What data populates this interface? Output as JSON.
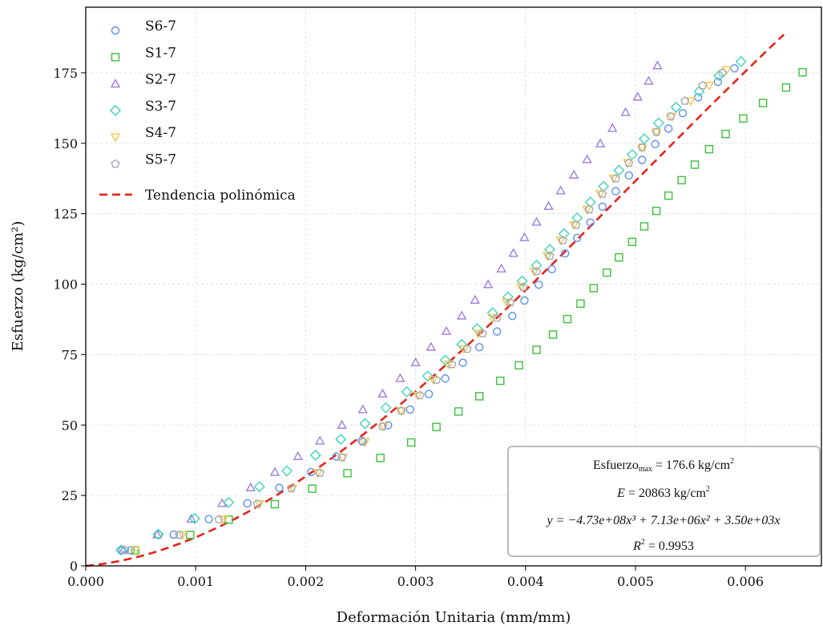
{
  "chart_data": {
    "type": "scatter",
    "xlabel": "Deformación Unitaria (mm/mm)",
    "ylabel": "Esfuerzo (kg/cm²)",
    "xlim": [
      0,
      0.0066
    ],
    "ylim": [
      0,
      190
    ],
    "x_ticks": [
      0.0,
      0.001,
      0.002,
      0.003,
      0.004,
      0.005,
      0.006
    ],
    "x_tick_labels": [
      "0.000",
      "0.001",
      "0.002",
      "0.003",
      "0.004",
      "0.005",
      "0.006"
    ],
    "y_ticks": [
      0,
      25,
      50,
      75,
      100,
      125,
      150,
      175
    ],
    "y_tick_labels": [
      "0",
      "25",
      "50",
      "75",
      "100",
      "125",
      "150",
      "175"
    ],
    "grid": true,
    "legend_position": "top-left",
    "series": [
      {
        "name": "S6-7",
        "marker": "circle",
        "color": "#5b8ff0",
        "points": [
          [
            0.00033,
            5.5
          ],
          [
            0.00041,
            5.5
          ],
          [
            0.00066,
            11.1
          ],
          [
            0.0008,
            11.1
          ],
          [
            0.00112,
            16.6
          ],
          [
            0.00147,
            22.2
          ],
          [
            0.00176,
            27.7
          ],
          [
            0.00205,
            33.3
          ],
          [
            0.00228,
            38.8
          ],
          [
            0.00251,
            44.4
          ],
          [
            0.00275,
            49.9
          ],
          [
            0.00295,
            55.5
          ],
          [
            0.00312,
            61.0
          ],
          [
            0.00327,
            66.5
          ],
          [
            0.00343,
            72.1
          ],
          [
            0.00358,
            77.6
          ],
          [
            0.00374,
            83.2
          ],
          [
            0.00388,
            88.7
          ],
          [
            0.00399,
            94.2
          ],
          [
            0.00412,
            99.8
          ],
          [
            0.00424,
            105.3
          ],
          [
            0.00436,
            110.9
          ],
          [
            0.00447,
            116.4
          ],
          [
            0.00459,
            121.9
          ],
          [
            0.0047,
            127.5
          ],
          [
            0.00482,
            133.0
          ],
          [
            0.00494,
            138.6
          ],
          [
            0.00506,
            144.1
          ],
          [
            0.00518,
            149.7
          ],
          [
            0.0053,
            155.2
          ],
          [
            0.00543,
            160.7
          ],
          [
            0.00557,
            166.3
          ],
          [
            0.00575,
            171.8
          ],
          [
            0.0059,
            176.6
          ]
        ]
      },
      {
        "name": "S1-7",
        "marker": "square",
        "color": "#3cc03c",
        "points": [
          [
            0.00045,
            5.5
          ],
          [
            0.00095,
            11.0
          ],
          [
            0.0013,
            16.4
          ],
          [
            0.00172,
            21.9
          ],
          [
            0.00206,
            27.4
          ],
          [
            0.00238,
            32.9
          ],
          [
            0.00268,
            38.3
          ],
          [
            0.00296,
            43.8
          ],
          [
            0.00319,
            49.3
          ],
          [
            0.00339,
            54.8
          ],
          [
            0.00358,
            60.2
          ],
          [
            0.00377,
            65.7
          ],
          [
            0.00394,
            71.2
          ],
          [
            0.0041,
            76.7
          ],
          [
            0.00425,
            82.1
          ],
          [
            0.00438,
            87.6
          ],
          [
            0.0045,
            93.1
          ],
          [
            0.00462,
            98.6
          ],
          [
            0.00474,
            104.1
          ],
          [
            0.00485,
            109.5
          ],
          [
            0.00497,
            115.0
          ],
          [
            0.00508,
            120.5
          ],
          [
            0.00519,
            126.0
          ],
          [
            0.0053,
            131.4
          ],
          [
            0.00542,
            136.9
          ],
          [
            0.00554,
            142.4
          ],
          [
            0.00567,
            147.9
          ],
          [
            0.00582,
            153.3
          ],
          [
            0.00598,
            158.8
          ],
          [
            0.00616,
            164.3
          ],
          [
            0.00637,
            169.8
          ],
          [
            0.00652,
            175.2
          ]
        ]
      },
      {
        "name": "S2-7",
        "marker": "triangle-up",
        "color": "#9b7fe0",
        "points": [
          [
            0.00034,
            5.6
          ],
          [
            0.00065,
            11.1
          ],
          [
            0.00096,
            16.7
          ],
          [
            0.00124,
            22.2
          ],
          [
            0.0015,
            27.8
          ],
          [
            0.00172,
            33.3
          ],
          [
            0.00193,
            38.9
          ],
          [
            0.00213,
            44.4
          ],
          [
            0.00233,
            50.0
          ],
          [
            0.00252,
            55.5
          ],
          [
            0.0027,
            61.1
          ],
          [
            0.00286,
            66.6
          ],
          [
            0.003,
            72.2
          ],
          [
            0.00314,
            77.7
          ],
          [
            0.00328,
            83.3
          ],
          [
            0.00342,
            88.8
          ],
          [
            0.00354,
            94.4
          ],
          [
            0.00366,
            99.9
          ],
          [
            0.00378,
            105.5
          ],
          [
            0.00389,
            111.0
          ],
          [
            0.00399,
            116.6
          ],
          [
            0.0041,
            122.1
          ],
          [
            0.00421,
            127.7
          ],
          [
            0.00432,
            133.2
          ],
          [
            0.00444,
            138.8
          ],
          [
            0.00456,
            144.3
          ],
          [
            0.00468,
            149.9
          ],
          [
            0.00479,
            155.4
          ],
          [
            0.00491,
            161.0
          ],
          [
            0.00502,
            166.5
          ],
          [
            0.00512,
            172.1
          ],
          [
            0.0052,
            177.6
          ]
        ]
      },
      {
        "name": "S3-7",
        "marker": "diamond",
        "color": "#3fd4b4",
        "points": [
          [
            0.00032,
            5.6
          ],
          [
            0.00066,
            11.2
          ],
          [
            0.00099,
            16.8
          ],
          [
            0.0013,
            22.5
          ],
          [
            0.00158,
            28.1
          ],
          [
            0.00183,
            33.7
          ],
          [
            0.00209,
            39.3
          ],
          [
            0.00232,
            44.9
          ],
          [
            0.00254,
            50.5
          ],
          [
            0.00273,
            56.1
          ],
          [
            0.00292,
            61.8
          ],
          [
            0.00311,
            67.4
          ],
          [
            0.00327,
            73.0
          ],
          [
            0.00342,
            78.6
          ],
          [
            0.00356,
            84.2
          ],
          [
            0.0037,
            89.8
          ],
          [
            0.00384,
            95.4
          ],
          [
            0.00397,
            101.1
          ],
          [
            0.0041,
            106.7
          ],
          [
            0.00422,
            112.3
          ],
          [
            0.00435,
            117.9
          ],
          [
            0.00447,
            123.5
          ],
          [
            0.00459,
            129.1
          ],
          [
            0.00471,
            134.7
          ],
          [
            0.00485,
            140.4
          ],
          [
            0.00497,
            146.0
          ],
          [
            0.00508,
            151.6
          ],
          [
            0.00521,
            157.2
          ],
          [
            0.00537,
            162.8
          ],
          [
            0.00558,
            168.4
          ],
          [
            0.00576,
            174.0
          ],
          [
            0.00596,
            179.0
          ]
        ]
      },
      {
        "name": "S4-7",
        "marker": "triangle-down",
        "color": "#f5c542",
        "points": [
          [
            0.00045,
            5.5
          ],
          [
            0.00088,
            11.0
          ],
          [
            0.00125,
            16.5
          ],
          [
            0.00158,
            22.0
          ],
          [
            0.00188,
            27.5
          ],
          [
            0.00211,
            33.0
          ],
          [
            0.00234,
            38.5
          ],
          [
            0.00254,
            44.0
          ],
          [
            0.00271,
            49.5
          ],
          [
            0.00287,
            55.0
          ],
          [
            0.00302,
            60.5
          ],
          [
            0.00316,
            66.0
          ],
          [
            0.0033,
            71.5
          ],
          [
            0.00344,
            77.0
          ],
          [
            0.00357,
            82.5
          ],
          [
            0.0037,
            88.0
          ],
          [
            0.00383,
            93.5
          ],
          [
            0.00396,
            99.0
          ],
          [
            0.00408,
            104.5
          ],
          [
            0.0042,
            110.0
          ],
          [
            0.00432,
            115.5
          ],
          [
            0.00444,
            121.0
          ],
          [
            0.00456,
            126.5
          ],
          [
            0.00468,
            132.0
          ],
          [
            0.0048,
            137.5
          ],
          [
            0.00493,
            143.0
          ],
          [
            0.00506,
            148.5
          ],
          [
            0.00519,
            154.0
          ],
          [
            0.00533,
            159.5
          ],
          [
            0.0055,
            165.0
          ],
          [
            0.00567,
            170.5
          ],
          [
            0.00583,
            176.0
          ]
        ]
      },
      {
        "name": "S5-7",
        "marker": "pentagon",
        "color": "#a8a8b8",
        "points": [
          [
            0.00036,
            5.5
          ],
          [
            0.00085,
            11.0
          ],
          [
            0.00121,
            16.5
          ],
          [
            0.00156,
            22.0
          ],
          [
            0.00187,
            27.5
          ],
          [
            0.00213,
            33.0
          ],
          [
            0.00233,
            38.5
          ],
          [
            0.00252,
            44.0
          ],
          [
            0.0027,
            49.5
          ],
          [
            0.00287,
            55.0
          ],
          [
            0.00304,
            60.5
          ],
          [
            0.00319,
            66.0
          ],
          [
            0.00333,
            71.5
          ],
          [
            0.00347,
            77.0
          ],
          [
            0.00361,
            82.5
          ],
          [
            0.00374,
            88.0
          ],
          [
            0.00386,
            93.5
          ],
          [
            0.00398,
            99.0
          ],
          [
            0.0041,
            104.5
          ],
          [
            0.00422,
            110.0
          ],
          [
            0.00434,
            115.5
          ],
          [
            0.00446,
            121.0
          ],
          [
            0.00458,
            126.5
          ],
          [
            0.0047,
            132.0
          ],
          [
            0.00482,
            137.5
          ],
          [
            0.00494,
            143.0
          ],
          [
            0.00506,
            148.5
          ],
          [
            0.00519,
            154.0
          ],
          [
            0.00532,
            159.5
          ],
          [
            0.00545,
            165.0
          ],
          [
            0.00561,
            170.5
          ],
          [
            0.00579,
            175.0
          ]
        ]
      }
    ],
    "trend": {
      "name": "Tendencia polinómica",
      "color": "#e8231c",
      "style": "dashed",
      "coefficients": {
        "a3": -473000000,
        "a2": 7130000,
        "a1": 3500,
        "a0": 0
      },
      "x_range": [
        0,
        0.00635
      ]
    }
  },
  "annotation": {
    "line1_main": "Esfuerzo",
    "line1_sub": "max",
    "line1_rest": " = 176.6 kg/cm",
    "line1_sup": "2",
    "line2_var": "E",
    "line2_rest": " = 20863 kg/cm",
    "line2_sup": "2",
    "line3": "y = −4.73e+08x³ + 7.13e+06x² + 3.50e+03x",
    "line4_var": "R",
    "line4_sup": "2",
    "line4_rest": " = 0.9953"
  }
}
